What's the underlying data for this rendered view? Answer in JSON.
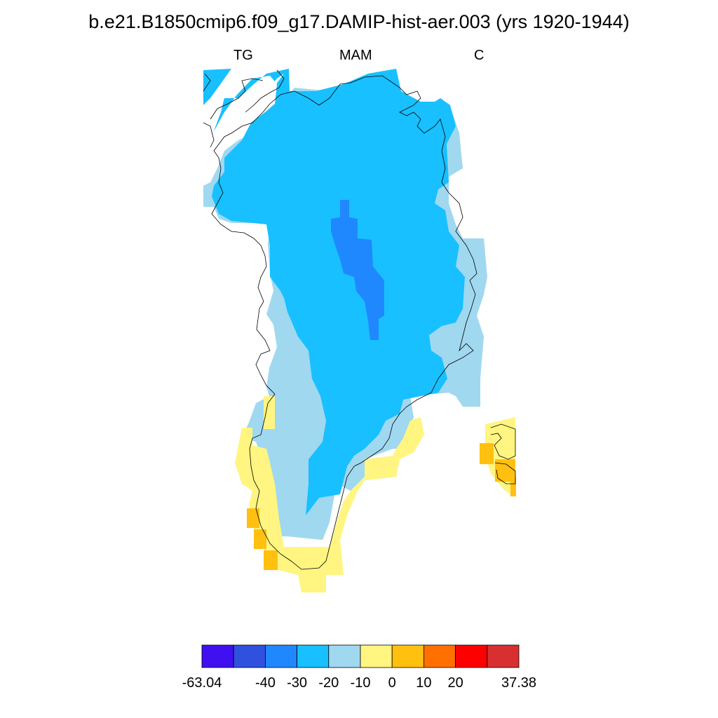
{
  "title": "b.e21.B1850cmip6.f09_g17.DAMIP-hist-aer.003 (yrs 1920-1944)",
  "subtitle": {
    "left": "TG",
    "center": "MAM",
    "right": "C"
  },
  "colors": {
    "bin_colors": [
      "#4010f0",
      "#3050e0",
      "#2088ff",
      "#18c0ff",
      "#a0d8f0",
      "#fff580",
      "#ffc010",
      "#ff7000",
      "#ff0000",
      "#d83030"
    ],
    "coast": "#000000",
    "outline": "#000000"
  },
  "colorbar": {
    "labels": [
      "-63.04",
      "-40",
      "-30",
      "-20",
      "-10",
      "0",
      "10",
      "20",
      "37.38"
    ],
    "label_boxes": [
      0,
      2,
      3,
      4,
      5,
      6,
      7,
      8,
      10
    ]
  }
}
